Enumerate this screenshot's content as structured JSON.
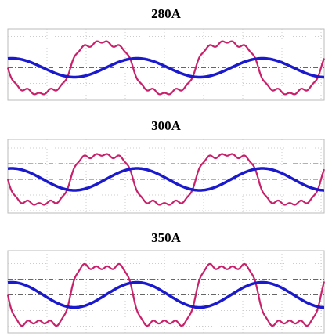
{
  "panels": [
    {
      "title": "280A"
    },
    {
      "title": "300A"
    },
    {
      "title": "350A"
    }
  ]
}
